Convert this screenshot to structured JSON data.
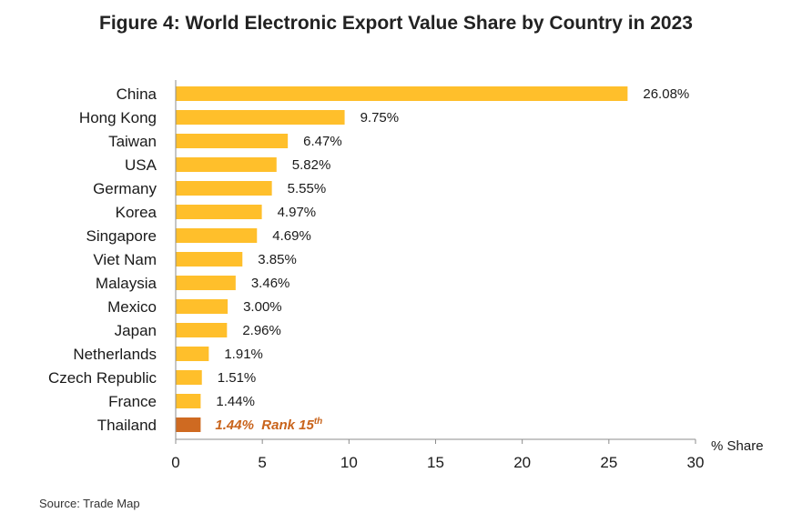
{
  "chart_data": {
    "type": "bar",
    "orientation": "horizontal",
    "title": "Figure 4: World Electronic Export Value Share by Country in 2023",
    "xlabel": "% Share",
    "ylabel": "",
    "xlim": [
      0,
      30
    ],
    "xticks": [
      0,
      5,
      10,
      15,
      20,
      25,
      30
    ],
    "grid": false,
    "categories": [
      "China",
      "Hong Kong",
      "Taiwan",
      "USA",
      "Germany",
      "Korea",
      "Singapore",
      "Viet Nam",
      "Malaysia",
      "Mexico",
      "Japan",
      "Netherlands",
      "Czech Republic",
      "France",
      "Thailand"
    ],
    "values": [
      26.08,
      9.75,
      6.47,
      5.82,
      5.55,
      4.97,
      4.69,
      3.85,
      3.46,
      3.0,
      2.96,
      1.91,
      1.51,
      1.44,
      1.44
    ],
    "value_labels": [
      "26.08%",
      "9.75%",
      "6.47%",
      "5.82%",
      "5.55%",
      "4.97%",
      "4.69%",
      "3.85%",
      "3.46%",
      "3.00%",
      "2.96%",
      "1.91%",
      "1.51%",
      "1.44%",
      "1.44%"
    ],
    "highlight": {
      "category": "Thailand",
      "annotation_prefix": "Rank 15",
      "annotation_sup": "th"
    },
    "colors": {
      "bar": "#ffbf2b",
      "highlight_bar": "#cf6a21",
      "highlight_text": "#c9641c",
      "axis": "#8c8c8c"
    },
    "source": "Source: Trade Map"
  }
}
